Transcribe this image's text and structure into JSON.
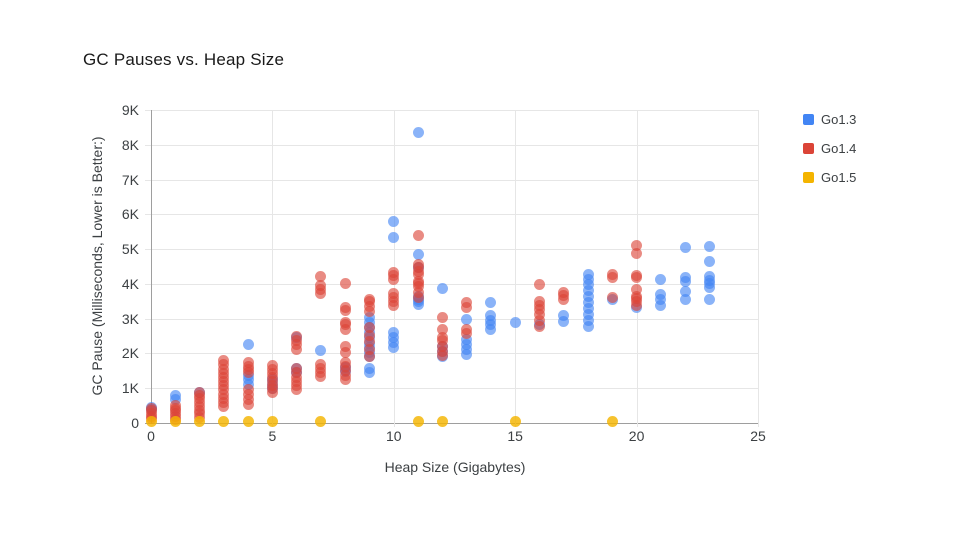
{
  "header": {
    "title": "GC Pauses vs. Heap Size"
  },
  "legend": {
    "items": [
      {
        "label": "Go1.3",
        "color": "#4285F4"
      },
      {
        "label": "Go1.4",
        "color": "#DB4437"
      },
      {
        "label": "Go1.5",
        "color": "#F4B400"
      }
    ]
  },
  "chart_data": {
    "type": "scatter",
    "title": "GC Pauses vs. Heap Size",
    "xlabel": "Heap Size (Gigabytes)",
    "ylabel": "GC Pause (Milliseconds, Lower is Better:)",
    "xlim": [
      0,
      25
    ],
    "ylim": [
      0,
      9000
    ],
    "grid": true,
    "legend_position": "right",
    "xticks": {
      "values": [
        0,
        5,
        10,
        15,
        20,
        25
      ],
      "labels": [
        "0",
        "5",
        "10",
        "15",
        "20",
        "25"
      ]
    },
    "yticks": {
      "values": [
        0,
        1000,
        2000,
        3000,
        4000,
        5000,
        6000,
        7000,
        8000,
        9000
      ],
      "labels": [
        "0",
        "1K",
        "2K",
        "3K",
        "4K",
        "5K",
        "6K",
        "7K",
        "8K",
        "9K"
      ]
    },
    "series": [
      {
        "name": "Go1.3",
        "color": "#4285F4",
        "fill_rgba": "rgba(66,133,244,0.62)",
        "points": [
          [
            0,
            400
          ],
          [
            0,
            440
          ],
          [
            1,
            680
          ],
          [
            1,
            790
          ],
          [
            2,
            890
          ],
          [
            4,
            1100
          ],
          [
            4,
            1240
          ],
          [
            4,
            1380
          ],
          [
            4,
            2250
          ],
          [
            5,
            980
          ],
          [
            5,
            1120
          ],
          [
            5,
            1240
          ],
          [
            6,
            1450
          ],
          [
            6,
            1560
          ],
          [
            6,
            2450
          ],
          [
            7,
            2080
          ],
          [
            8,
            1480
          ],
          [
            8,
            1600
          ],
          [
            9,
            1440
          ],
          [
            9,
            1560
          ],
          [
            9,
            1900
          ],
          [
            9,
            2030
          ],
          [
            9,
            2160
          ],
          [
            9,
            2300
          ],
          [
            9,
            2450
          ],
          [
            9,
            2600
          ],
          [
            9,
            2740
          ],
          [
            9,
            2900
          ],
          [
            9,
            3030
          ],
          [
            10,
            2160
          ],
          [
            10,
            2320
          ],
          [
            10,
            2450
          ],
          [
            10,
            2600
          ],
          [
            10,
            5330
          ],
          [
            10,
            5780
          ],
          [
            11,
            3400
          ],
          [
            11,
            3480
          ],
          [
            11,
            3560
          ],
          [
            11,
            3640
          ],
          [
            11,
            4480
          ],
          [
            11,
            4840
          ],
          [
            11,
            8350
          ],
          [
            12,
            1900
          ],
          [
            12,
            2050
          ],
          [
            12,
            2200
          ],
          [
            12,
            3870
          ],
          [
            13,
            1980
          ],
          [
            13,
            2120
          ],
          [
            13,
            2260
          ],
          [
            13,
            2400
          ],
          [
            13,
            2970
          ],
          [
            14,
            2680
          ],
          [
            14,
            2820
          ],
          [
            14,
            2960
          ],
          [
            14,
            3080
          ],
          [
            14,
            3460
          ],
          [
            15,
            2880
          ],
          [
            16,
            2820
          ],
          [
            17,
            2910
          ],
          [
            17,
            3080
          ],
          [
            18,
            2780
          ],
          [
            18,
            2950
          ],
          [
            18,
            3120
          ],
          [
            18,
            3290
          ],
          [
            18,
            3460
          ],
          [
            18,
            3630
          ],
          [
            18,
            3800
          ],
          [
            18,
            3970
          ],
          [
            18,
            4120
          ],
          [
            18,
            4260
          ],
          [
            19,
            3540
          ],
          [
            20,
            3330
          ],
          [
            21,
            3380
          ],
          [
            21,
            3550
          ],
          [
            21,
            3700
          ],
          [
            21,
            4120
          ],
          [
            22,
            3540
          ],
          [
            22,
            3780
          ],
          [
            22,
            4060
          ],
          [
            22,
            4170
          ],
          [
            22,
            5040
          ],
          [
            23,
            3560
          ],
          [
            23,
            3890
          ],
          [
            23,
            4000
          ],
          [
            23,
            4110
          ],
          [
            23,
            4210
          ],
          [
            23,
            4640
          ],
          [
            23,
            5070
          ]
        ]
      },
      {
        "name": "Go1.4",
        "color": "#DB4437",
        "fill_rgba": "rgba(219,68,55,0.62)",
        "points": [
          [
            0,
            120
          ],
          [
            0,
            200
          ],
          [
            0,
            280
          ],
          [
            0,
            350
          ],
          [
            0,
            430
          ],
          [
            1,
            110
          ],
          [
            1,
            190
          ],
          [
            1,
            270
          ],
          [
            1,
            350
          ],
          [
            1,
            430
          ],
          [
            1,
            500
          ],
          [
            2,
            150
          ],
          [
            2,
            260
          ],
          [
            2,
            370
          ],
          [
            2,
            480
          ],
          [
            2,
            590
          ],
          [
            2,
            700
          ],
          [
            2,
            800
          ],
          [
            2,
            880
          ],
          [
            3,
            470
          ],
          [
            3,
            590
          ],
          [
            3,
            710
          ],
          [
            3,
            830
          ],
          [
            3,
            950
          ],
          [
            3,
            1070
          ],
          [
            3,
            1190
          ],
          [
            3,
            1310
          ],
          [
            3,
            1430
          ],
          [
            3,
            1550
          ],
          [
            3,
            1670
          ],
          [
            3,
            1790
          ],
          [
            4,
            540
          ],
          [
            4,
            680
          ],
          [
            4,
            820
          ],
          [
            4,
            950
          ],
          [
            4,
            1450
          ],
          [
            4,
            1540
          ],
          [
            4,
            1630
          ],
          [
            4,
            1730
          ],
          [
            5,
            870
          ],
          [
            5,
            980
          ],
          [
            5,
            1090
          ],
          [
            5,
            1200
          ],
          [
            5,
            1310
          ],
          [
            5,
            1420
          ],
          [
            5,
            1530
          ],
          [
            5,
            1640
          ],
          [
            6,
            960
          ],
          [
            6,
            1080
          ],
          [
            6,
            1200
          ],
          [
            6,
            1320
          ],
          [
            6,
            1440
          ],
          [
            6,
            1560
          ],
          [
            6,
            2120
          ],
          [
            6,
            2250
          ],
          [
            6,
            2380
          ],
          [
            6,
            2500
          ],
          [
            7,
            1330
          ],
          [
            7,
            1450
          ],
          [
            7,
            1570
          ],
          [
            7,
            1670
          ],
          [
            7,
            3720
          ],
          [
            7,
            3840
          ],
          [
            7,
            3960
          ],
          [
            7,
            4200
          ],
          [
            8,
            1260
          ],
          [
            8,
            1380
          ],
          [
            8,
            1500
          ],
          [
            8,
            1620
          ],
          [
            8,
            1740
          ],
          [
            8,
            2040
          ],
          [
            8,
            2190
          ],
          [
            8,
            2700
          ],
          [
            8,
            2820
          ],
          [
            8,
            2900
          ],
          [
            8,
            3230
          ],
          [
            8,
            3320
          ],
          [
            8,
            4000
          ],
          [
            9,
            1920
          ],
          [
            9,
            2110
          ],
          [
            9,
            2330
          ],
          [
            9,
            2520
          ],
          [
            9,
            2740
          ],
          [
            9,
            3210
          ],
          [
            9,
            3360
          ],
          [
            9,
            3500
          ],
          [
            9,
            3560
          ],
          [
            10,
            3370
          ],
          [
            10,
            3500
          ],
          [
            10,
            3620
          ],
          [
            10,
            3720
          ],
          [
            10,
            4140
          ],
          [
            10,
            4230
          ],
          [
            10,
            4330
          ],
          [
            11,
            3620
          ],
          [
            11,
            3760
          ],
          [
            11,
            3930
          ],
          [
            11,
            4010
          ],
          [
            11,
            4080
          ],
          [
            11,
            4270
          ],
          [
            11,
            4360
          ],
          [
            11,
            4460
          ],
          [
            11,
            4560
          ],
          [
            11,
            5400
          ],
          [
            12,
            1930
          ],
          [
            12,
            2070
          ],
          [
            12,
            2210
          ],
          [
            12,
            2360
          ],
          [
            12,
            2470
          ],
          [
            12,
            2700
          ],
          [
            12,
            3040
          ],
          [
            13,
            2580
          ],
          [
            13,
            2680
          ],
          [
            13,
            3310
          ],
          [
            13,
            3460
          ],
          [
            16,
            2780
          ],
          [
            16,
            2940
          ],
          [
            16,
            3110
          ],
          [
            16,
            3270
          ],
          [
            16,
            3390
          ],
          [
            16,
            3480
          ],
          [
            16,
            3990
          ],
          [
            17,
            3560
          ],
          [
            17,
            3660
          ],
          [
            17,
            3760
          ],
          [
            19,
            3620
          ],
          [
            19,
            4180
          ],
          [
            19,
            4270
          ],
          [
            20,
            3390
          ],
          [
            20,
            3490
          ],
          [
            20,
            3570
          ],
          [
            20,
            3640
          ],
          [
            20,
            3840
          ],
          [
            20,
            4180
          ],
          [
            20,
            4240
          ],
          [
            20,
            4860
          ],
          [
            20,
            5100
          ]
        ]
      },
      {
        "name": "Go1.5",
        "color": "#F4B400",
        "fill_rgba": "rgba(244,180,0,0.82)",
        "points": [
          [
            0,
            30
          ],
          [
            1,
            30
          ],
          [
            2,
            30
          ],
          [
            3,
            30
          ],
          [
            4,
            30
          ],
          [
            5,
            30
          ],
          [
            7,
            30
          ],
          [
            11,
            30
          ],
          [
            12,
            30
          ],
          [
            15,
            30
          ],
          [
            19,
            30
          ]
        ]
      }
    ]
  }
}
